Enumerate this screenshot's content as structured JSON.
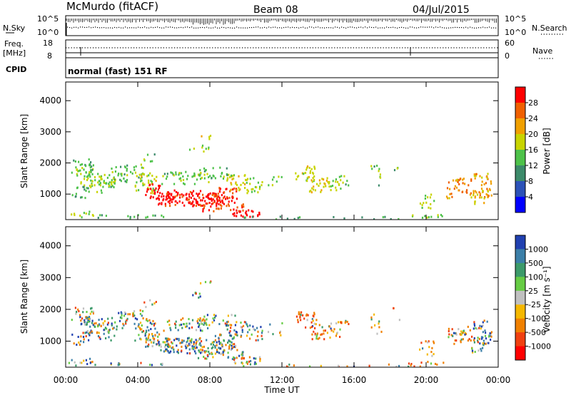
{
  "header": {
    "station": "McMurdo (fitACF)",
    "beam": "Beam 08",
    "date": "04/Jul/2015"
  },
  "params": {
    "nsky_label": "N.Sky",
    "nsearch_label": "N.Search",
    "log_top": "10^5",
    "log_bottom": "10^0",
    "freq_label_1": "Freq.",
    "freq_label_2": "[MHz]",
    "freq_top": "18",
    "freq_bottom": "8",
    "nave_label": "Nave",
    "nave_top": "60",
    "nave_bottom": "0",
    "cpid_label": "CPID",
    "cpid_value": "normal (fast) 151 RF"
  },
  "chart_data": [
    {
      "type": "heatmap",
      "name": "power",
      "ylabel": "Slant Range [km]",
      "xlabel": "",
      "x_ticks": [
        "00:00",
        "04:00",
        "08:00",
        "12:00",
        "16:00",
        "20:00",
        "00:00"
      ],
      "y_ticks": [
        1000,
        2000,
        3000,
        4000
      ],
      "xlim": [
        0,
        24
      ],
      "ylim": [
        180,
        4600
      ],
      "colorbar": {
        "label": "Power [dB]",
        "ticks": [
          "4",
          "8",
          "12",
          "16",
          "20",
          "24",
          "28"
        ],
        "colors": [
          "#0000ff",
          "#2c52b8",
          "#3c8a6a",
          "#4ec24a",
          "#c8d400",
          "#f0a000",
          "#f06000",
          "#ff0000"
        ]
      }
    },
    {
      "type": "heatmap",
      "name": "velocity",
      "ylabel": "Slant Range [km]",
      "xlabel": "Time UT",
      "x_ticks": [
        "00:00",
        "04:00",
        "08:00",
        "12:00",
        "16:00",
        "20:00",
        "00:00"
      ],
      "y_ticks": [
        1000,
        2000,
        3000,
        4000
      ],
      "xlim": [
        0,
        24
      ],
      "ylim": [
        180,
        4600
      ],
      "colorbar": {
        "label": "Velocity [m s⁻¹]",
        "ticks": [
          "1000",
          "500",
          "100",
          "25",
          "-25",
          "-100",
          "-500",
          "-1000"
        ],
        "colors": [
          "#2040b0",
          "#3b7fa8",
          "#3c9a6a",
          "#66cc44",
          "#c0c0c0",
          "#f5b800",
          "#f08000",
          "#f04010",
          "#ff0000"
        ]
      }
    }
  ]
}
